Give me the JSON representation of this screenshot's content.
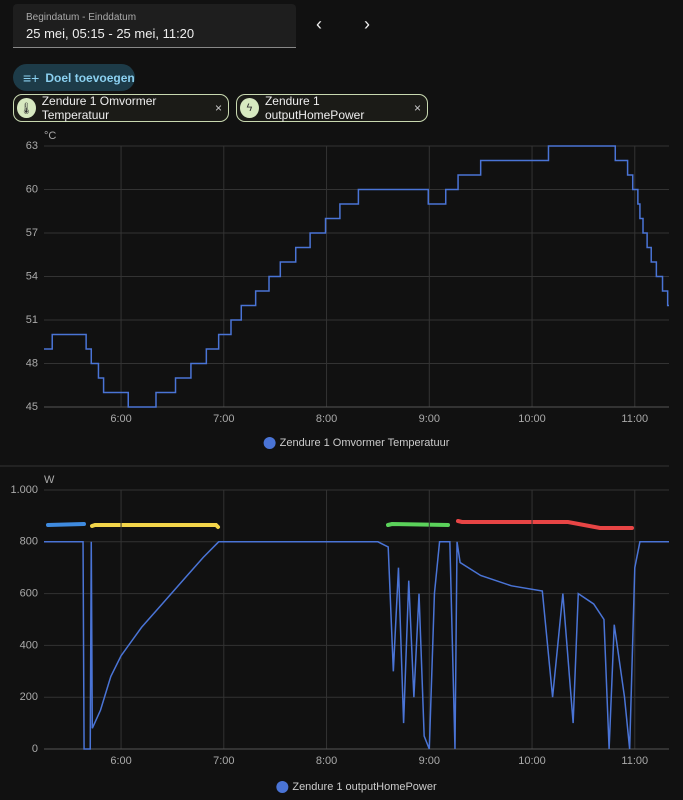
{
  "header": {
    "date_label": "Begindatum - Einddatum",
    "date_range": "25 mei, 05:15 - 25 mei, 11:20",
    "add_button": "Doel toevoegen",
    "chips": [
      "Zendure 1 Omvormer Temperatuur",
      "Zendure 1 outputHomePower"
    ]
  },
  "chart_data": [
    {
      "type": "line",
      "step": true,
      "y_unit": "°C",
      "x": [
        5.25,
        5.33,
        5.66,
        5.71,
        5.78,
        5.83,
        6.07,
        6.34,
        6.53,
        6.68,
        6.83,
        6.95,
        7.07,
        7.17,
        7.31,
        7.44,
        7.55,
        7.7,
        7.84,
        7.99,
        8.13,
        8.31,
        8.99,
        9.16,
        9.28,
        9.5,
        10.16,
        10.81,
        10.93,
        10.98,
        11.03,
        11.05,
        11.08,
        11.12,
        11.16,
        11.21,
        11.27,
        11.32
      ],
      "series": [
        {
          "name": "Zendure 1 Omvormer Temperatuur",
          "color": "#4a74d6",
          "values": [
            49,
            50,
            49,
            48,
            47,
            46,
            45,
            46,
            47,
            48,
            49,
            50,
            51,
            52,
            53,
            54,
            55,
            56,
            57,
            58,
            59,
            60,
            59,
            60,
            61,
            62,
            63,
            62,
            61,
            60,
            59,
            58,
            57,
            56,
            55,
            54,
            53,
            52
          ]
        }
      ],
      "xlim": [
        5.25,
        11.333
      ],
      "ylim": [
        45,
        63
      ],
      "yticks": [
        45,
        48,
        51,
        54,
        57,
        60,
        63
      ],
      "xticks": [
        {
          "value": 6,
          "label": "6:00"
        },
        {
          "value": 7,
          "label": "7:00"
        },
        {
          "value": 8,
          "label": "8:00"
        },
        {
          "value": 9,
          "label": "9:00"
        },
        {
          "value": 10,
          "label": "10:00"
        },
        {
          "value": 11,
          "label": "11:00"
        }
      ],
      "grid": true
    },
    {
      "type": "line",
      "step": false,
      "y_unit": "W",
      "x": [
        5.25,
        5.63,
        5.64,
        5.7,
        5.71,
        5.72,
        5.8,
        5.9,
        6.0,
        6.2,
        6.4,
        6.6,
        6.8,
        6.95,
        8.5,
        8.6,
        8.65,
        8.7,
        8.75,
        8.8,
        8.85,
        8.9,
        8.95,
        9.0,
        9.05,
        9.1,
        9.2,
        9.25,
        9.27,
        9.3,
        9.5,
        9.8,
        10.1,
        10.2,
        10.3,
        10.4,
        10.45,
        10.6,
        10.7,
        10.75,
        10.8,
        10.9,
        10.95,
        11.0,
        11.05,
        11.333
      ],
      "series": [
        {
          "name": "Zendure 1 outputHomePower",
          "color": "#4a74d6",
          "values": [
            800,
            800,
            0,
            0,
            800,
            80,
            150,
            280,
            360,
            470,
            560,
            650,
            740,
            800,
            800,
            780,
            300,
            700,
            100,
            650,
            200,
            600,
            50,
            0,
            600,
            800,
            800,
            0,
            800,
            720,
            670,
            630,
            610,
            200,
            600,
            100,
            600,
            560,
            500,
            0,
            480,
            200,
            0,
            700,
            800,
            800
          ]
        }
      ],
      "xlim": [
        5.25,
        11.333
      ],
      "ylim": [
        0,
        1000
      ],
      "yticks": [
        0,
        200,
        400,
        600,
        800,
        {
          "value": 1000,
          "label": "1.000"
        }
      ],
      "xticks": [
        {
          "value": 6,
          "label": "6:00"
        },
        {
          "value": 7,
          "label": "7:00"
        },
        {
          "value": 8,
          "label": "8:00"
        },
        {
          "value": 9,
          "label": "9:00"
        },
        {
          "value": 10,
          "label": "10:00"
        },
        {
          "value": 11,
          "label": "11:00"
        }
      ],
      "grid": true
    }
  ]
}
